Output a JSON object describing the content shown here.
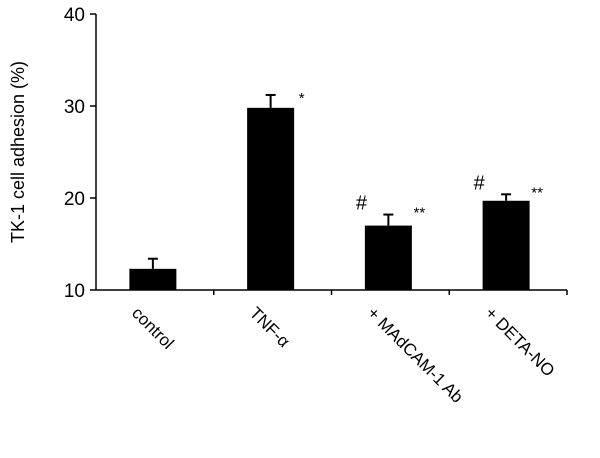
{
  "chart_data": {
    "type": "bar",
    "title": "",
    "xlabel": "",
    "ylabel": "TK-1 cell adhesion (%)",
    "ylim": [
      10,
      40
    ],
    "yticks": [
      10,
      20,
      30,
      40
    ],
    "grid": false,
    "legend": null,
    "categories": [
      "control",
      "TNF-α",
      "+ MAdCAM-1 Ab",
      "+ DETA-NO"
    ],
    "values": [
      12.3,
      29.8,
      17.0,
      19.7
    ],
    "error_bars": [
      1.1,
      1.4,
      1.2,
      0.7
    ],
    "bar_color": "#000000",
    "annotations": [
      {
        "category": "TNF-α",
        "left": "",
        "right": "*"
      },
      {
        "category": "+ MAdCAM-1 Ab",
        "left": "#",
        "right": "**"
      },
      {
        "category": "+ DETA-NO",
        "left": "#",
        "right": "**"
      }
    ]
  }
}
